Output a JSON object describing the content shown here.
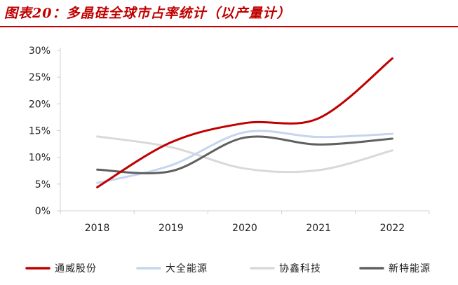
{
  "figure": {
    "title": "图表20：多晶硅全球市占率统计（以产量计）"
  },
  "colors": {
    "title": "#c00000",
    "rule": "#c00000",
    "axis": "#d0d0d0",
    "tick_text": "#222222"
  },
  "chart_data": {
    "type": "line",
    "title": "",
    "xlabel": "",
    "ylabel": "",
    "categories": [
      "2018",
      "2019",
      "2020",
      "2021",
      "2022"
    ],
    "ylim": [
      0,
      30
    ],
    "yticks": [
      0,
      5,
      10,
      15,
      20,
      25,
      30
    ],
    "ytick_labels": [
      "0%",
      "5%",
      "10%",
      "15%",
      "20%",
      "25%",
      "30%"
    ],
    "grid": false,
    "legend_position": "bottom",
    "smooth": true,
    "series": [
      {
        "name": "通威股份",
        "values": [
          4.4,
          12.8,
          16.4,
          17.3,
          28.5
        ],
        "color": "#c00000",
        "width": 3
      },
      {
        "name": "大全能源",
        "values": [
          5.2,
          8.5,
          14.7,
          13.8,
          14.4
        ],
        "color": "#c5d5ee",
        "width": 3
      },
      {
        "name": "协鑫科技",
        "values": [
          13.9,
          11.9,
          7.9,
          7.6,
          11.3
        ],
        "color": "#d9d9d9",
        "width": 3
      },
      {
        "name": "新特能源",
        "values": [
          7.7,
          7.4,
          13.7,
          12.4,
          13.5
        ],
        "color": "#606060",
        "width": 3
      }
    ]
  }
}
